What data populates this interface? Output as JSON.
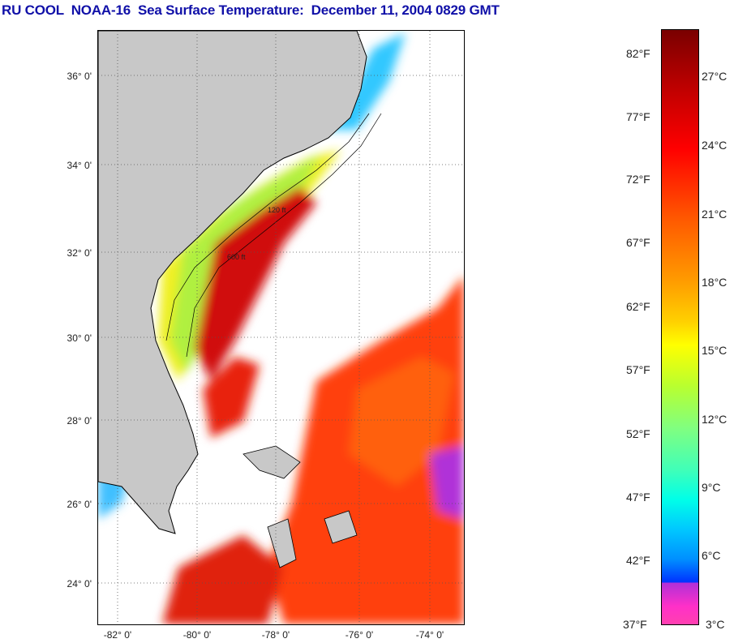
{
  "title": "RU COOL  NOAA-16  Sea Surface Temperature:  December 11, 2004 0829 GMT",
  "map": {
    "lat_labels": [
      "36° 0'",
      "34° 0'",
      "32° 0'",
      "30° 0'",
      "28° 0'",
      "26° 0'",
      "24° 0'"
    ],
    "lon_labels": [
      "-82° 0'",
      "-80° 0'",
      "-78° 0'",
      "-76° 0'",
      "-74° 0'"
    ],
    "contour_labels": [
      "120 ft",
      "600 ft"
    ],
    "land_color": "#c8c8c8"
  },
  "colorbar": {
    "fahrenheit": [
      "82°F",
      "77°F",
      "72°F",
      "67°F",
      "62°F",
      "57°F",
      "52°F",
      "47°F",
      "42°F",
      "37°F"
    ],
    "celsius": [
      "27°C",
      "24°C",
      "21°C",
      "18°C",
      "15°C",
      "12°C",
      "9°C",
      "6°C",
      "3°C"
    ]
  }
}
